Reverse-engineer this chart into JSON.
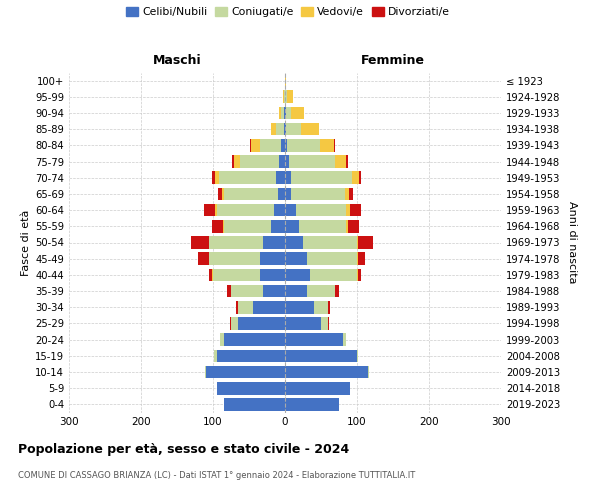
{
  "age_groups": [
    "0-4",
    "5-9",
    "10-14",
    "15-19",
    "20-24",
    "25-29",
    "30-34",
    "35-39",
    "40-44",
    "45-49",
    "50-54",
    "55-59",
    "60-64",
    "65-69",
    "70-74",
    "75-79",
    "80-84",
    "85-89",
    "90-94",
    "95-99",
    "100+"
  ],
  "birth_years": [
    "2019-2023",
    "2014-2018",
    "2009-2013",
    "2004-2008",
    "1999-2003",
    "1994-1998",
    "1989-1993",
    "1984-1988",
    "1979-1983",
    "1974-1978",
    "1969-1973",
    "1964-1968",
    "1959-1963",
    "1954-1958",
    "1949-1953",
    "1944-1948",
    "1939-1943",
    "1934-1938",
    "1929-1933",
    "1924-1928",
    "≤ 1923"
  ],
  "maschi_celibi": [
    85,
    95,
    110,
    95,
    85,
    65,
    45,
    30,
    35,
    35,
    30,
    20,
    15,
    10,
    12,
    8,
    5,
    2,
    1,
    0,
    0
  ],
  "maschi_coniugati": [
    0,
    0,
    1,
    3,
    5,
    10,
    20,
    45,
    65,
    70,
    75,
    65,
    80,
    75,
    80,
    55,
    30,
    10,
    5,
    2,
    0
  ],
  "maschi_vedovi": [
    0,
    0,
    0,
    0,
    0,
    0,
    0,
    0,
    1,
    1,
    1,
    1,
    2,
    3,
    5,
    8,
    12,
    8,
    3,
    1,
    0
  ],
  "maschi_divorziati": [
    0,
    0,
    0,
    0,
    0,
    1,
    3,
    5,
    5,
    15,
    25,
    15,
    15,
    5,
    5,
    2,
    2,
    0,
    0,
    0,
    0
  ],
  "femmine_celibi": [
    75,
    90,
    115,
    100,
    80,
    50,
    40,
    30,
    35,
    30,
    25,
    20,
    15,
    8,
    8,
    5,
    3,
    2,
    1,
    0,
    0
  ],
  "femmine_coniugati": [
    0,
    0,
    1,
    2,
    5,
    10,
    20,
    40,
    65,
    70,
    75,
    65,
    70,
    75,
    85,
    65,
    45,
    20,
    8,
    3,
    0
  ],
  "femmine_vedovi": [
    0,
    0,
    0,
    0,
    0,
    0,
    0,
    0,
    1,
    1,
    2,
    3,
    5,
    6,
    10,
    15,
    20,
    25,
    18,
    8,
    2
  ],
  "femmine_divorziati": [
    0,
    0,
    0,
    0,
    0,
    1,
    2,
    5,
    5,
    10,
    20,
    15,
    15,
    5,
    3,
    2,
    2,
    0,
    0,
    0,
    0
  ],
  "colors": {
    "celibi": "#4472c4",
    "coniugati": "#c5d9a0",
    "vedovi": "#f5c842",
    "divorziati": "#cc1111"
  },
  "legend_labels": [
    "Celibi/Nubili",
    "Coniugati/e",
    "Vedovi/e",
    "Divorziati/e"
  ],
  "title": "Popolazione per età, sesso e stato civile - 2024",
  "subtitle": "COMUNE DI CASSAGO BRIANZA (LC) - Dati ISTAT 1° gennaio 2024 - Elaborazione TUTTITALIA.IT",
  "ylabel_left": "Fasce di età",
  "ylabel_right": "Anni di nascita",
  "header_left": "Maschi",
  "header_right": "Femmine",
  "xlim": 300,
  "background_color": "#ffffff",
  "grid_color": "#cccccc"
}
